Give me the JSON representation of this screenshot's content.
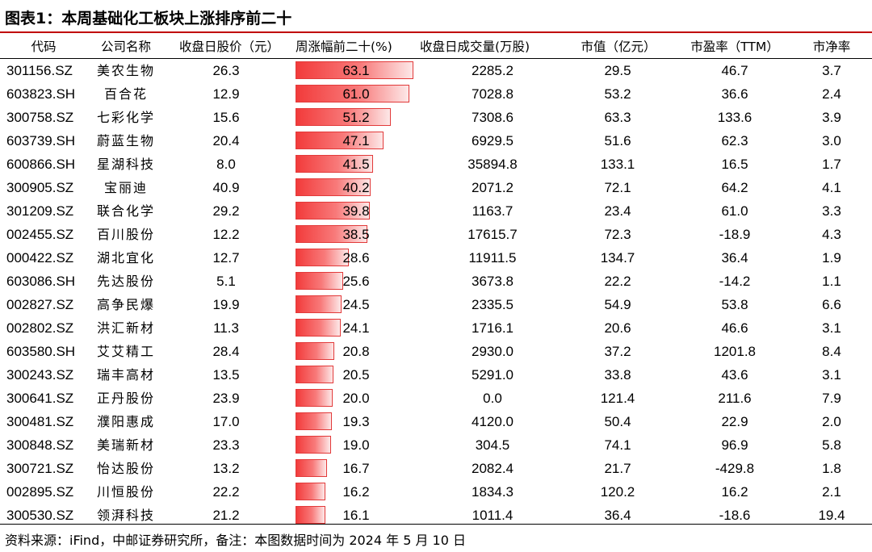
{
  "title": "图表1：本周基础化工板块上涨排序前二十",
  "headers": {
    "code": "代码",
    "name": "公司名称",
    "price": "收盘日股价（元）",
    "change": "周涨幅前二十(%)",
    "volume": "收盘日成交量(万股)",
    "mktcap": "市值（亿元）",
    "pe": "市盈率（TTM）",
    "pb": "市净率"
  },
  "rows": [
    {
      "code": "301156.SZ",
      "name": "美农生物",
      "price": "26.3",
      "change": "63.1",
      "volume": "2285.2",
      "mktcap": "29.5",
      "pe": "46.7",
      "pb": "3.7"
    },
    {
      "code": "603823.SH",
      "name": "百合花",
      "price": "12.9",
      "change": "61.0",
      "volume": "7028.8",
      "mktcap": "53.2",
      "pe": "36.6",
      "pb": "2.4"
    },
    {
      "code": "300758.SZ",
      "name": "七彩化学",
      "price": "15.6",
      "change": "51.2",
      "volume": "7308.6",
      "mktcap": "63.3",
      "pe": "133.6",
      "pb": "3.9"
    },
    {
      "code": "603739.SH",
      "name": "蔚蓝生物",
      "price": "20.4",
      "change": "47.1",
      "volume": "6929.5",
      "mktcap": "51.6",
      "pe": "62.3",
      "pb": "3.0"
    },
    {
      "code": "600866.SH",
      "name": "星湖科技",
      "price": "8.0",
      "change": "41.5",
      "volume": "35894.8",
      "mktcap": "133.1",
      "pe": "16.5",
      "pb": "1.7"
    },
    {
      "code": "300905.SZ",
      "name": "宝丽迪",
      "price": "40.9",
      "change": "40.2",
      "volume": "2071.2",
      "mktcap": "72.1",
      "pe": "64.2",
      "pb": "4.1"
    },
    {
      "code": "301209.SZ",
      "name": "联合化学",
      "price": "29.2",
      "change": "39.8",
      "volume": "1163.7",
      "mktcap": "23.4",
      "pe": "61.0",
      "pb": "3.3"
    },
    {
      "code": "002455.SZ",
      "name": "百川股份",
      "price": "12.2",
      "change": "38.5",
      "volume": "17615.7",
      "mktcap": "72.3",
      "pe": "-18.9",
      "pb": "4.3"
    },
    {
      "code": "000422.SZ",
      "name": "湖北宜化",
      "price": "12.7",
      "change": "28.6",
      "volume": "11911.5",
      "mktcap": "134.7",
      "pe": "36.4",
      "pb": "1.9"
    },
    {
      "code": "603086.SH",
      "name": "先达股份",
      "price": "5.1",
      "change": "25.6",
      "volume": "3673.8",
      "mktcap": "22.2",
      "pe": "-14.2",
      "pb": "1.1"
    },
    {
      "code": "002827.SZ",
      "name": "高争民爆",
      "price": "19.9",
      "change": "24.5",
      "volume": "2335.5",
      "mktcap": "54.9",
      "pe": "53.8",
      "pb": "6.6"
    },
    {
      "code": "002802.SZ",
      "name": "洪汇新材",
      "price": "11.3",
      "change": "24.1",
      "volume": "1716.1",
      "mktcap": "20.6",
      "pe": "46.6",
      "pb": "3.1"
    },
    {
      "code": "603580.SH",
      "name": "艾艾精工",
      "price": "28.4",
      "change": "20.8",
      "volume": "2930.0",
      "mktcap": "37.2",
      "pe": "1201.8",
      "pb": "8.4"
    },
    {
      "code": "300243.SZ",
      "name": "瑞丰高材",
      "price": "13.5",
      "change": "20.5",
      "volume": "5291.0",
      "mktcap": "33.8",
      "pe": "43.6",
      "pb": "3.1"
    },
    {
      "code": "300641.SZ",
      "name": "正丹股份",
      "price": "23.9",
      "change": "20.0",
      "volume": "0.0",
      "mktcap": "121.4",
      "pe": "211.6",
      "pb": "7.9"
    },
    {
      "code": "300481.SZ",
      "name": "濮阳惠成",
      "price": "17.0",
      "change": "19.3",
      "volume": "4120.0",
      "mktcap": "50.4",
      "pe": "22.9",
      "pb": "2.0"
    },
    {
      "code": "300848.SZ",
      "name": "美瑞新材",
      "price": "23.3",
      "change": "19.0",
      "volume": "304.5",
      "mktcap": "74.1",
      "pe": "96.9",
      "pb": "5.8"
    },
    {
      "code": "300721.SZ",
      "name": "怡达股份",
      "price": "13.2",
      "change": "16.7",
      "volume": "2082.4",
      "mktcap": "21.7",
      "pe": "-429.8",
      "pb": "1.8"
    },
    {
      "code": "002895.SZ",
      "name": "川恒股份",
      "price": "22.2",
      "change": "16.2",
      "volume": "1834.3",
      "mktcap": "120.2",
      "pe": "16.2",
      "pb": "2.1"
    },
    {
      "code": "300530.SZ",
      "name": "领湃科技",
      "price": "21.2",
      "change": "16.1",
      "volume": "1011.4",
      "mktcap": "36.4",
      "pe": "-18.6",
      "pb": "19.4"
    }
  ],
  "bar_colors": {
    "start": "#f23b3b",
    "end": "#fde8e8",
    "border": "#e23a3a"
  },
  "accent_rule_color": "#c00000",
  "source": "资料来源：iFind，中邮证券研究所，备注：本图数据时间为 2024 年 5 月 10 日"
}
